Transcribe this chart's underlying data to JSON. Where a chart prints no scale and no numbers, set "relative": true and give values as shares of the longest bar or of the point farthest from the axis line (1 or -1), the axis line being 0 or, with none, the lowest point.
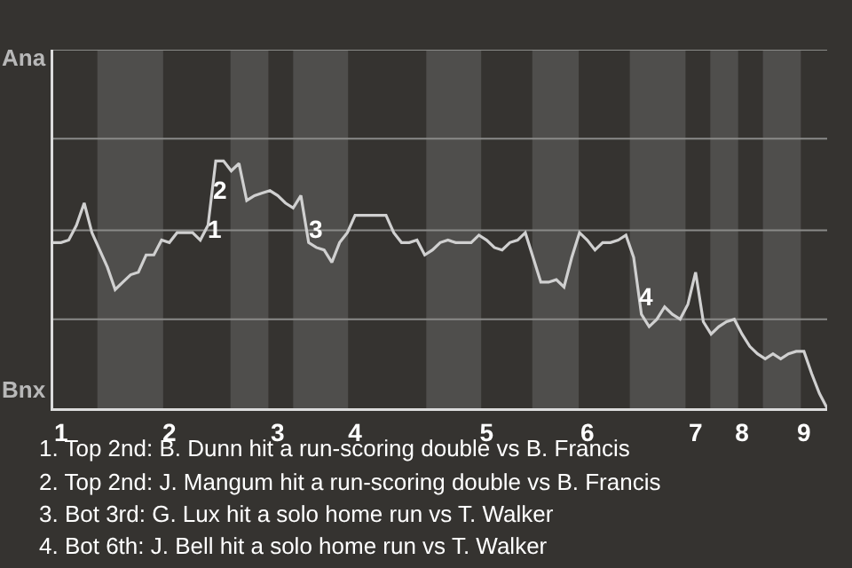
{
  "chart_data": {
    "type": "line",
    "relative": true,
    "categories": [
      null,
      "1",
      null,
      null,
      null,
      null,
      null,
      null,
      null,
      null,
      null,
      null,
      null,
      null,
      null,
      "2",
      null,
      null,
      null,
      null,
      null,
      null,
      null,
      null,
      null,
      null,
      null,
      null,
      null,
      "3",
      null,
      null,
      null,
      null,
      null,
      null,
      null,
      null,
      null,
      "4",
      null,
      null,
      null,
      null,
      null,
      null,
      null,
      null,
      null,
      null,
      null,
      null,
      null,
      null,
      null,
      null,
      "5",
      null,
      null,
      null,
      null,
      null,
      null,
      null,
      null,
      null,
      null,
      null,
      null,
      "6",
      null,
      null,
      null,
      null,
      null,
      null,
      null,
      null,
      null,
      null,
      null,
      null,
      null,
      "7",
      null,
      null,
      null,
      null,
      null,
      "8",
      null,
      null,
      null,
      null,
      null,
      null,
      null,
      "9",
      null,
      null,
      null
    ],
    "series": [
      {
        "color": "#d0d0d0",
        "values": [
          0.67,
          0.67,
          0.68,
          0.74,
          0.83,
          0.71,
          0.64,
          0.57,
          0.48,
          0.51,
          0.54,
          0.55,
          0.62,
          0.62,
          0.68,
          0.67,
          0.71,
          0.71,
          0.71,
          0.68,
          0.74,
          1,
          1,
          0.96,
          0.99,
          0.84,
          0.86,
          0.87,
          0.88,
          0.86,
          0.83,
          0.81,
          0.86,
          0.67,
          0.65,
          0.64,
          0.59,
          0.67,
          0.71,
          0.78,
          0.78,
          0.78,
          0.78,
          0.78,
          0.71,
          0.67,
          0.67,
          0.68,
          0.62,
          0.64,
          0.67,
          0.68,
          0.67,
          0.67,
          0.67,
          0.7,
          0.68,
          0.65,
          0.64,
          0.67,
          0.68,
          0.71,
          0.61,
          0.51,
          0.51,
          0.52,
          0.49,
          0.61,
          0.71,
          0.68,
          0.64,
          0.67,
          0.67,
          0.68,
          0.7,
          0.61,
          0.38,
          0.33,
          0.36,
          0.41,
          0.38,
          0.36,
          0.42,
          0.55,
          0.35,
          0.3,
          0.33,
          0.35,
          0.36,
          0.3,
          0.25,
          0.22,
          0.2,
          0.22,
          0.2,
          0.22,
          0.23,
          0.23,
          0.14,
          0.06,
          0
        ]
      }
    ],
    "marker": "none",
    "line_style": "solid",
    "ref_lines": [
      {
        "axis": "y",
        "value": 0.36,
        "color": "#8a8a88"
      },
      {
        "axis": "y",
        "value": 0.72,
        "color": "#8a8a88"
      },
      {
        "axis": "y",
        "value": 1.09,
        "color": "#8a8a88"
      },
      {
        "axis": "y",
        "value": 1.45,
        "color": "#8a8a88"
      }
    ],
    "annotations": [
      "Ana",
      "Bnx",
      "1",
      "2",
      "3",
      "4",
      "1. Top 2nd: B. Dunn hit a run-scoring double vs B. Francis",
      "2. Top 2nd: J. Mangum hit a run-scoring double vs B. Francis",
      "3. Bot 3rd: G. Lux hit a solo home run vs T. Walker",
      "4. Bot 6th: J. Bell hit a solo home run vs T. Walker"
    ]
  }
}
